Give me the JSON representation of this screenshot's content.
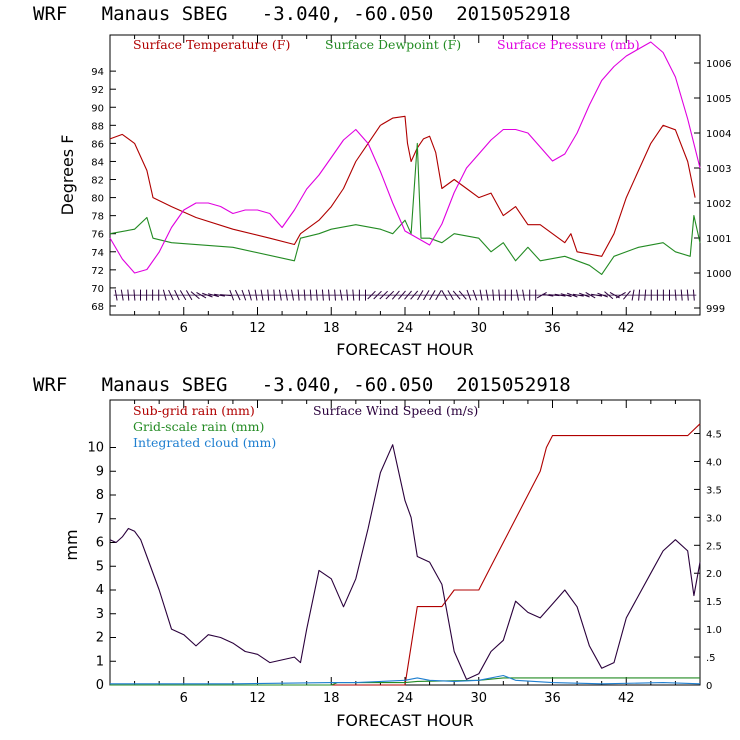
{
  "chart_data": [
    {
      "type": "line",
      "title": "WRF   Manaus SBEG   -3.040, -60.050  2015052918",
      "xlabel": "FORECAST HOUR",
      "ylabel": "Degrees F",
      "xlim": [
        0,
        48
      ],
      "ylim": [
        67,
        98
      ],
      "y2lim": [
        998.8,
        1006.8
      ],
      "x_ticks": [
        "6",
        "12",
        "18",
        "24",
        "30",
        "36",
        "42"
      ],
      "y_ticks": [
        "68",
        "70",
        "72",
        "74",
        "76",
        "78",
        "80",
        "82",
        "84",
        "86",
        "88",
        "90",
        "92",
        "94"
      ],
      "y2_ticks": [
        "999",
        "1000",
        "1001",
        "1002",
        "1003",
        "1004",
        "1005",
        "1006"
      ],
      "grid": false,
      "legend_position": "top",
      "series": [
        {
          "name": "Surface Temperature (F)",
          "color": "#b00000",
          "axis": "left",
          "points": [
            [
              0,
              86.5
            ],
            [
              1,
              87
            ],
            [
              2,
              86
            ],
            [
              3,
              83
            ],
            [
              3.5,
              80
            ],
            [
              5,
              79
            ],
            [
              7,
              77.8
            ],
            [
              10,
              76.5
            ],
            [
              13,
              75.5
            ],
            [
              15,
              74.8
            ],
            [
              15.5,
              76
            ],
            [
              17,
              77.5
            ],
            [
              18,
              79
            ],
            [
              19,
              81
            ],
            [
              20,
              84
            ],
            [
              21,
              86
            ],
            [
              22,
              88
            ],
            [
              23,
              88.8
            ],
            [
              24,
              89
            ],
            [
              24.2,
              86
            ],
            [
              24.5,
              84
            ],
            [
              25,
              85.5
            ],
            [
              25.5,
              86.5
            ],
            [
              26,
              86.8
            ],
            [
              26.5,
              85
            ],
            [
              27,
              81
            ],
            [
              28,
              82
            ],
            [
              29,
              81
            ],
            [
              30,
              80
            ],
            [
              31,
              80.5
            ],
            [
              32,
              78
            ],
            [
              33,
              79
            ],
            [
              34,
              77
            ],
            [
              35,
              77
            ],
            [
              36,
              76
            ],
            [
              37,
              75
            ],
            [
              37.5,
              76
            ],
            [
              38,
              74
            ],
            [
              40,
              73.5
            ],
            [
              41,
              76
            ],
            [
              42,
              80
            ],
            [
              43,
              83
            ],
            [
              44,
              86
            ],
            [
              45,
              88
            ],
            [
              46,
              87.5
            ],
            [
              47,
              84
            ],
            [
              47.6,
              80
            ]
          ]
        },
        {
          "name": "Surface Dewpoint (F)",
          "color": "#238b23",
          "axis": "left",
          "points": [
            [
              0,
              76
            ],
            [
              2,
              76.5
            ],
            [
              3,
              77.8
            ],
            [
              3.5,
              75.5
            ],
            [
              5,
              75
            ],
            [
              10,
              74.5
            ],
            [
              15,
              73
            ],
            [
              15.5,
              75.5
            ],
            [
              17,
              76
            ],
            [
              18,
              76.5
            ],
            [
              20,
              77
            ],
            [
              22,
              76.5
            ],
            [
              23,
              76
            ],
            [
              24,
              77.5
            ],
            [
              24.5,
              76
            ],
            [
              25,
              86
            ],
            [
              25.3,
              75.5
            ],
            [
              26,
              75.5
            ],
            [
              27,
              75
            ],
            [
              28,
              76
            ],
            [
              30,
              75.5
            ],
            [
              31,
              74
            ],
            [
              32,
              75
            ],
            [
              33,
              73
            ],
            [
              34,
              74.5
            ],
            [
              35,
              73
            ],
            [
              37,
              73.5
            ],
            [
              38,
              73
            ],
            [
              39,
              72.5
            ],
            [
              40,
              71.5
            ],
            [
              41,
              73.5
            ],
            [
              43,
              74.5
            ],
            [
              45,
              75
            ],
            [
              46,
              74
            ],
            [
              47.2,
              73.5
            ],
            [
              47.5,
              78
            ],
            [
              48,
              75
            ]
          ]
        },
        {
          "name": "Surface Pressure (mb)",
          "color": "#e000e0",
          "axis": "right",
          "points": [
            [
              0,
              1001
            ],
            [
              1,
              1000.4
            ],
            [
              2,
              1000
            ],
            [
              3,
              1000.1
            ],
            [
              4,
              1000.6
            ],
            [
              5,
              1001.3
            ],
            [
              6,
              1001.8
            ],
            [
              7,
              1002
            ],
            [
              8,
              1002
            ],
            [
              9,
              1001.9
            ],
            [
              10,
              1001.7
            ],
            [
              11,
              1001.8
            ],
            [
              12,
              1001.8
            ],
            [
              13,
              1001.7
            ],
            [
              14,
              1001.3
            ],
            [
              15,
              1001.8
            ],
            [
              16,
              1002.4
            ],
            [
              17,
              1002.8
            ],
            [
              18,
              1003.3
            ],
            [
              19,
              1003.8
            ],
            [
              20,
              1004.1
            ],
            [
              21,
              1003.7
            ],
            [
              22,
              1002.9
            ],
            [
              23,
              1002
            ],
            [
              24,
              1001.2
            ],
            [
              25,
              1001
            ],
            [
              26,
              1000.8
            ],
            [
              27,
              1001.4
            ],
            [
              28,
              1002.3
            ],
            [
              29,
              1003
            ],
            [
              30,
              1003.4
            ],
            [
              31,
              1003.8
            ],
            [
              32,
              1004.1
            ],
            [
              33,
              1004.1
            ],
            [
              34,
              1004
            ],
            [
              35,
              1003.6
            ],
            [
              36,
              1003.2
            ],
            [
              37,
              1003.4
            ],
            [
              38,
              1004
            ],
            [
              39,
              1004.8
            ],
            [
              40,
              1005.5
            ],
            [
              41,
              1005.9
            ],
            [
              42,
              1006.2
            ],
            [
              43,
              1006.4
            ],
            [
              44,
              1006.6
            ],
            [
              45,
              1006.3
            ],
            [
              46,
              1005.6
            ],
            [
              47,
              1004.4
            ],
            [
              48,
              1003
            ]
          ]
        }
      ],
      "wind_barbs": {
        "color": "#2a003c",
        "level": 69.2,
        "angles_deg": [
          100,
          100,
          95,
          95,
          90,
          90,
          90,
          90,
          105,
          115,
          115,
          120,
          120,
          140,
          150,
          160,
          165,
          170,
          175,
          110,
          115,
          110,
          105,
          100,
          100,
          95,
          95,
          100,
          100,
          100,
          95,
          95,
          95,
          95,
          95,
          95,
          95,
          100,
          95,
          95,
          90,
          90,
          45,
          45,
          45,
          45,
          50,
          50,
          50,
          50,
          60,
          60,
          60,
          60,
          120,
          120,
          130,
          130,
          110,
          110,
          100,
          100,
          95,
          95,
          90,
          90,
          100,
          100,
          90,
          90,
          30,
          -10,
          -5,
          -10,
          -15,
          -20,
          -10,
          -20,
          -30,
          -10,
          -20,
          -40,
          -30,
          30,
          50,
          80,
          85,
          85,
          90,
          90,
          90,
          90,
          95,
          95,
          95,
          95
        ]
      }
    },
    {
      "type": "line",
      "title": "WRF   Manaus SBEG   -3.040, -60.050  2015052918",
      "xlabel": "FORECAST HOUR",
      "ylabel": "mm",
      "xlim": [
        0,
        48
      ],
      "ylim": [
        0,
        12
      ],
      "y2lim": [
        0,
        5.1
      ],
      "x_ticks": [
        "6",
        "12",
        "18",
        "24",
        "30",
        "36",
        "42"
      ],
      "y_ticks": [
        "0",
        "1",
        "2",
        "3",
        "4",
        "5",
        "6",
        "7",
        "8",
        "9",
        "10"
      ],
      "y2_ticks": [
        "0",
        ".5",
        "1.0",
        "1.5",
        "2.0",
        "2.5",
        "3.0",
        "3.5",
        "4.0",
        "4.5"
      ],
      "grid": false,
      "legend_position": "top",
      "series": [
        {
          "name": "Sub-grid rain (mm)",
          "color": "#b00000",
          "axis": "left",
          "points": [
            [
              0,
              0
            ],
            [
              24,
              0
            ],
            [
              25,
              3.3
            ],
            [
              27,
              3.3
            ],
            [
              28,
              4
            ],
            [
              30,
              4
            ],
            [
              31,
              5
            ],
            [
              32,
              6
            ],
            [
              33,
              7
            ],
            [
              34,
              8
            ],
            [
              35,
              9
            ],
            [
              35.5,
              10
            ],
            [
              36,
              10.5
            ],
            [
              47,
              10.5
            ],
            [
              48,
              11
            ]
          ]
        },
        {
          "name": "Grid-scale rain (mm)",
          "color": "#238b23",
          "axis": "left",
          "points": [
            [
              0,
              0
            ],
            [
              18,
              0
            ],
            [
              18.5,
              0.1
            ],
            [
              24,
              0.1
            ],
            [
              25,
              0.15
            ],
            [
              30,
              0.2
            ],
            [
              32,
              0.3
            ],
            [
              48,
              0.3
            ]
          ]
        },
        {
          "name": "Integrated cloud (mm)",
          "color": "#1f7fd0",
          "axis": "left",
          "points": [
            [
              0,
              0.05
            ],
            [
              10,
              0.05
            ],
            [
              18,
              0.1
            ],
            [
              20,
              0.1
            ],
            [
              24,
              0.2
            ],
            [
              25,
              0.3
            ],
            [
              26,
              0.2
            ],
            [
              28,
              0.15
            ],
            [
              30,
              0.2
            ],
            [
              32,
              0.4
            ],
            [
              33,
              0.2
            ],
            [
              36,
              0.1
            ],
            [
              40,
              0.05
            ],
            [
              45,
              0.1
            ],
            [
              48,
              0.05
            ]
          ]
        },
        {
          "name": "Surface Wind Speed (m/s)",
          "color": "#2a003c",
          "axis": "right",
          "points": [
            [
              0,
              2.6
            ],
            [
              0.5,
              2.55
            ],
            [
              1,
              2.65
            ],
            [
              1.5,
              2.8
            ],
            [
              2,
              2.75
            ],
            [
              2.5,
              2.6
            ],
            [
              3,
              2.3
            ],
            [
              4,
              1.7
            ],
            [
              5,
              1.0
            ],
            [
              6,
              0.9
            ],
            [
              7,
              0.7
            ],
            [
              8,
              0.9
            ],
            [
              9,
              0.85
            ],
            [
              10,
              0.75
            ],
            [
              11,
              0.6
            ],
            [
              12,
              0.55
            ],
            [
              13,
              0.4
            ],
            [
              14,
              0.45
            ],
            [
              15,
              0.5
            ],
            [
              15.5,
              0.4
            ],
            [
              16,
              1.0
            ],
            [
              17,
              2.05
            ],
            [
              18,
              1.9
            ],
            [
              19,
              1.4
            ],
            [
              20,
              1.9
            ],
            [
              21,
              2.8
            ],
            [
              22,
              3.8
            ],
            [
              23,
              4.3
            ],
            [
              24,
              3.3
            ],
            [
              24.5,
              3.0
            ],
            [
              25,
              2.3
            ],
            [
              26,
              2.2
            ],
            [
              27,
              1.8
            ],
            [
              28,
              0.6
            ],
            [
              29,
              0.1
            ],
            [
              30,
              0.2
            ],
            [
              31,
              0.6
            ],
            [
              32,
              0.8
            ],
            [
              33,
              1.5
            ],
            [
              34,
              1.3
            ],
            [
              35,
              1.2
            ],
            [
              36,
              1.45
            ],
            [
              37,
              1.7
            ],
            [
              38,
              1.4
            ],
            [
              39,
              0.7
            ],
            [
              40,
              0.3
            ],
            [
              41,
              0.4
            ],
            [
              42,
              1.2
            ],
            [
              43,
              1.6
            ],
            [
              44,
              2.0
            ],
            [
              45,
              2.4
            ],
            [
              46,
              2.6
            ],
            [
              47,
              2.4
            ],
            [
              47.5,
              1.6
            ],
            [
              48,
              2.2
            ]
          ]
        }
      ]
    }
  ]
}
